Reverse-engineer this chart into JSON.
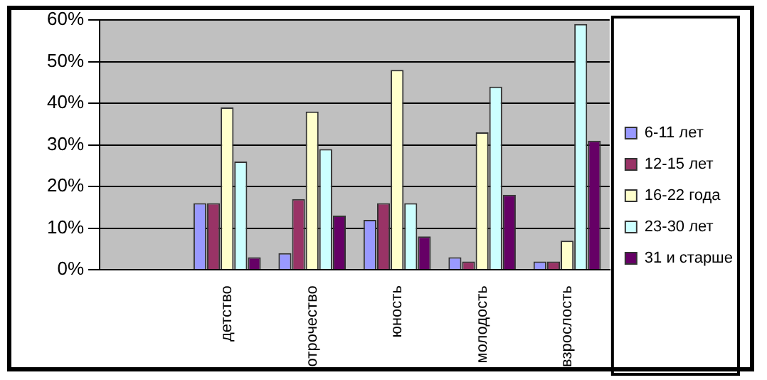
{
  "chart_data": {
    "type": "bar",
    "categories": [
      null,
      "детство",
      "отрочество",
      "юность",
      "молодость",
      "взрослость"
    ],
    "series": [
      {
        "name": "6-11 лет",
        "color": "#9999ff",
        "values": [
          null,
          16,
          4,
          12,
          3,
          2
        ]
      },
      {
        "name": "12-15 лет",
        "color": "#993366",
        "values": [
          null,
          16,
          17,
          16,
          2,
          2
        ]
      },
      {
        "name": "16-22 года",
        "color": "#ffffcc",
        "values": [
          null,
          39,
          38,
          48,
          33,
          7
        ]
      },
      {
        "name": "23-30 лет",
        "color": "#ccffff",
        "values": [
          null,
          26,
          29,
          16,
          44,
          59
        ]
      },
      {
        "name": "31 и старше",
        "color": "#660066",
        "values": [
          null,
          3,
          13,
          8,
          18,
          31
        ]
      }
    ],
    "ylim": [
      0,
      60
    ],
    "yticks": [
      {
        "value": 0,
        "label": "0%"
      },
      {
        "value": 10,
        "label": "10%"
      },
      {
        "value": 20,
        "label": "20%"
      },
      {
        "value": 30,
        "label": "30%"
      },
      {
        "value": 40,
        "label": "40%"
      },
      {
        "value": 50,
        "label": "50%"
      },
      {
        "value": 60,
        "label": "60%"
      }
    ],
    "grid": "y",
    "legend": "right"
  }
}
